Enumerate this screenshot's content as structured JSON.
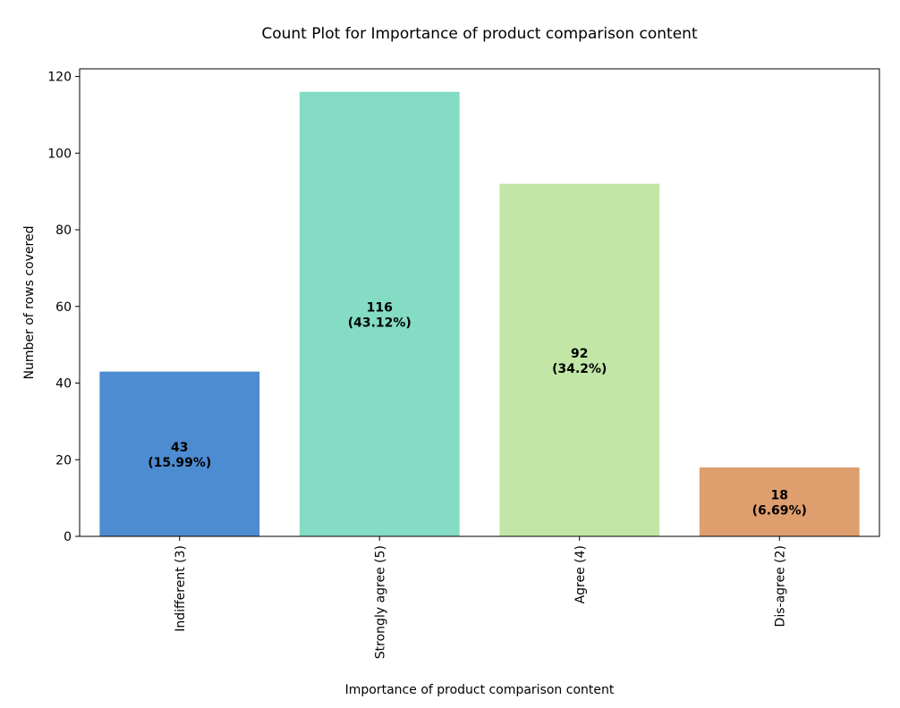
{
  "chart_data": {
    "type": "bar",
    "title": "Count Plot for Importance of product comparison content",
    "xlabel": "Importance of product comparison content",
    "ylabel": "Number of rows covered",
    "categories": [
      "Indifferent (3)",
      "Strongly agree (5)",
      "Agree (4)",
      "Dis-agree (2)"
    ],
    "values": [
      43,
      116,
      92,
      18
    ],
    "value_labels": [
      "43",
      "116",
      "92",
      "18"
    ],
    "percent_labels": [
      "(15.99%)",
      "(43.12%)",
      "(34.2%)",
      "(6.69%)"
    ],
    "colors": [
      "#4e8cd1",
      "#84dcc4",
      "#c2e6a6",
      "#df9e6d"
    ],
    "ylim": [
      0,
      122
    ],
    "yticks": [
      0,
      20,
      40,
      60,
      80,
      100,
      120
    ],
    "grid": false,
    "legend": false
  }
}
